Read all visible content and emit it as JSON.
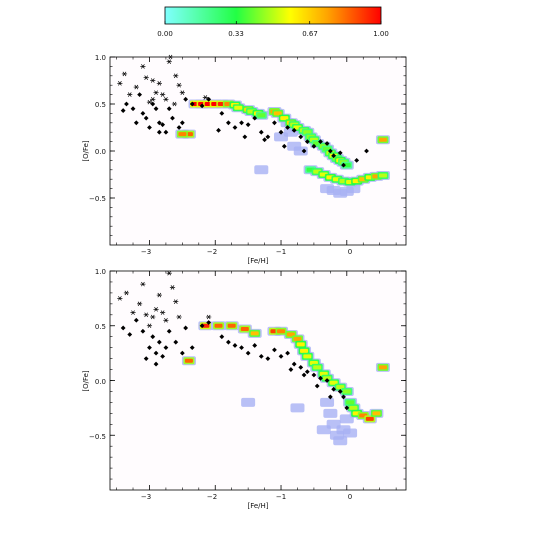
{
  "colorbar": {
    "tick_labels": [
      "0.00",
      "0.33",
      "0.67",
      "1.00"
    ],
    "stops": [
      {
        "v": 0.0,
        "color": "#80ffff"
      },
      {
        "v": 0.33,
        "color": "#22ff44"
      },
      {
        "v": 0.58,
        "color": "#ffff00"
      },
      {
        "v": 0.75,
        "color": "#ffa500"
      },
      {
        "v": 1.0,
        "color": "#ff0000"
      }
    ]
  },
  "chart_data": [
    {
      "type": "scatter",
      "xlabel": "[Fe/H]",
      "ylabel": "[O/Fe]",
      "xlim": [
        -3.6,
        0.9
      ],
      "ylim": [
        -1.0,
        1.0
      ],
      "x_ticks": [
        -3,
        -2,
        -1,
        0
      ],
      "x_tick_labels": [
        "−3",
        "−2",
        "−1",
        "0"
      ],
      "y_ticks": [
        1.0,
        0.5,
        0.0,
        -0.5
      ],
      "y_tick_labels": [
        "1.0",
        "0.5",
        "0.0",
        "−0.5"
      ],
      "density_cells": [
        [
          -2.3,
          0.5,
          1.0
        ],
        [
          -2.2,
          0.5,
          1.0
        ],
        [
          -2.1,
          0.5,
          1.0
        ],
        [
          -2.0,
          0.5,
          1.0
        ],
        [
          -1.9,
          0.5,
          0.95
        ],
        [
          -1.8,
          0.5,
          0.8
        ],
        [
          -1.7,
          0.49,
          0.6
        ],
        [
          -1.65,
          0.46,
          0.55
        ],
        [
          -1.5,
          0.44,
          0.65
        ],
        [
          -1.45,
          0.42,
          0.5
        ],
        [
          -1.35,
          0.4,
          0.6
        ],
        [
          -1.3,
          0.38,
          0.4
        ],
        [
          -1.1,
          0.42,
          0.75
        ],
        [
          -1.05,
          0.4,
          0.7
        ],
        [
          -0.95,
          0.35,
          0.6
        ],
        [
          -0.85,
          0.3,
          0.65
        ],
        [
          -0.8,
          0.28,
          0.5
        ],
        [
          -0.75,
          0.25,
          0.55
        ],
        [
          -0.65,
          0.22,
          0.5
        ],
        [
          -0.6,
          0.2,
          0.45
        ],
        [
          -0.55,
          0.15,
          0.45
        ],
        [
          -0.5,
          0.12,
          0.5
        ],
        [
          -0.45,
          0.08,
          0.4
        ],
        [
          -0.35,
          0.05,
          0.45
        ],
        [
          -0.3,
          0.02,
          0.4
        ],
        [
          -0.25,
          -0.02,
          0.5
        ],
        [
          -0.2,
          -0.05,
          0.55
        ],
        [
          -0.15,
          -0.08,
          0.45
        ],
        [
          -0.1,
          -0.1,
          0.6
        ],
        [
          -0.05,
          -0.12,
          0.45
        ],
        [
          0.0,
          -0.15,
          0.35
        ],
        [
          -0.55,
          -0.2,
          0.35
        ],
        [
          -0.45,
          -0.22,
          0.5
        ],
        [
          -0.35,
          -0.25,
          0.55
        ],
        [
          -0.25,
          -0.28,
          0.6
        ],
        [
          -0.15,
          -0.3,
          0.55
        ],
        [
          -0.05,
          -0.32,
          0.5
        ],
        [
          0.05,
          -0.33,
          0.55
        ],
        [
          0.15,
          -0.32,
          0.6
        ],
        [
          0.25,
          -0.3,
          0.7
        ],
        [
          0.35,
          -0.28,
          0.6
        ],
        [
          0.45,
          -0.27,
          0.75
        ],
        [
          0.55,
          -0.26,
          0.5
        ],
        [
          -0.3,
          -0.4,
          0.1
        ],
        [
          -0.2,
          -0.42,
          0.12
        ],
        [
          -0.1,
          -0.45,
          0.1
        ],
        [
          0.0,
          -0.43,
          0.08
        ],
        [
          0.1,
          -0.4,
          0.1
        ],
        [
          -1.0,
          0.15,
          0.1
        ],
        [
          -0.8,
          0.05,
          0.1
        ],
        [
          -0.7,
          0.0,
          0.1
        ],
        [
          -0.9,
          0.3,
          0.2
        ],
        [
          -0.85,
          0.2,
          0.15
        ],
        [
          -1.3,
          -0.2,
          0.05
        ],
        [
          -2.4,
          0.18,
          0.85
        ],
        [
          -2.5,
          0.18,
          0.8
        ],
        [
          0.55,
          0.12,
          0.75
        ]
      ],
      "filled_points": [
        [
          -3.4,
          0.43
        ],
        [
          -3.35,
          0.5
        ],
        [
          -3.25,
          0.45
        ],
        [
          -3.15,
          0.6
        ],
        [
          -3.1,
          0.4
        ],
        [
          -3.05,
          0.35
        ],
        [
          -2.95,
          0.5
        ],
        [
          -2.9,
          0.45
        ],
        [
          -2.85,
          0.3
        ],
        [
          -2.8,
          0.28
        ],
        [
          -2.75,
          0.2
        ],
        [
          -2.7,
          0.45
        ],
        [
          -2.65,
          0.35
        ],
        [
          -2.55,
          0.25
        ],
        [
          -2.5,
          0.3
        ],
        [
          -2.45,
          0.55
        ],
        [
          -2.35,
          0.5
        ],
        [
          -2.2,
          0.48
        ],
        [
          -2.1,
          0.55
        ],
        [
          -1.9,
          0.4
        ],
        [
          -1.8,
          0.3
        ],
        [
          -1.7,
          0.25
        ],
        [
          -1.6,
          0.3
        ],
        [
          -1.5,
          0.28
        ],
        [
          -1.4,
          0.35
        ],
        [
          -1.3,
          0.2
        ],
        [
          -1.2,
          0.15
        ],
        [
          -1.1,
          0.3
        ],
        [
          -1.0,
          0.2
        ],
        [
          -0.9,
          0.25
        ],
        [
          -0.8,
          0.22
        ],
        [
          -0.7,
          0.15
        ],
        [
          -0.6,
          0.1
        ],
        [
          -0.5,
          0.05
        ],
        [
          -0.4,
          0.1
        ],
        [
          -0.3,
          0.08
        ],
        [
          -0.2,
          -0.05
        ],
        [
          -0.1,
          -0.02
        ],
        [
          -3.0,
          0.25
        ],
        [
          -2.85,
          0.2
        ],
        [
          -3.2,
          0.3
        ],
        [
          -1.95,
          0.22
        ],
        [
          -1.55,
          0.15
        ],
        [
          -1.25,
          0.12
        ],
        [
          -0.95,
          0.05
        ],
        [
          -0.65,
          0.0
        ],
        [
          -0.05,
          -0.15
        ],
        [
          0.3,
          0.0
        ],
        [
          -0.25,
          0.0
        ],
        [
          0.15,
          -0.1
        ]
      ],
      "star_points": [
        [
          -3.45,
          0.72
        ],
        [
          -3.38,
          0.82
        ],
        [
          -3.3,
          0.6
        ],
        [
          -3.2,
          0.68
        ],
        [
          -3.1,
          0.9
        ],
        [
          -3.05,
          0.78
        ],
        [
          -2.95,
          0.75
        ],
        [
          -2.9,
          0.62
        ],
        [
          -2.85,
          0.72
        ],
        [
          -2.8,
          0.6
        ],
        [
          -2.75,
          0.55
        ],
        [
          -2.7,
          0.95
        ],
        [
          -2.68,
          1.0
        ],
        [
          -2.6,
          0.8
        ],
        [
          -2.55,
          0.7
        ],
        [
          -2.5,
          0.62
        ],
        [
          -2.62,
          0.5
        ],
        [
          -2.95,
          0.55
        ],
        [
          -3.0,
          0.52
        ],
        [
          -2.15,
          0.57
        ]
      ]
    },
    {
      "type": "scatter",
      "xlabel": "[Fe/H]",
      "ylabel": "[O/Fe]",
      "xlim": [
        -3.6,
        0.9
      ],
      "ylim": [
        -1.0,
        1.0
      ],
      "x_ticks": [
        -3,
        -2,
        -1,
        0
      ],
      "x_tick_labels": [
        "−3",
        "−2",
        "−1",
        "0"
      ],
      "y_ticks": [
        1.0,
        0.5,
        0.0,
        -0.5
      ],
      "y_tick_labels": [
        "1.0",
        "0.5",
        "0.0",
        "−0.5"
      ],
      "density_cells": [
        [
          -2.15,
          0.5,
          0.95
        ],
        [
          -1.95,
          0.5,
          0.85
        ],
        [
          -1.75,
          0.5,
          0.85
        ],
        [
          -1.55,
          0.47,
          0.85
        ],
        [
          -1.4,
          0.43,
          0.7
        ],
        [
          -1.1,
          0.45,
          0.9
        ],
        [
          -1.0,
          0.45,
          0.8
        ],
        [
          -0.85,
          0.42,
          0.75
        ],
        [
          -0.75,
          0.38,
          0.75
        ],
        [
          -0.7,
          0.33,
          0.6
        ],
        [
          -0.65,
          0.27,
          0.6
        ],
        [
          -0.6,
          0.22,
          0.55
        ],
        [
          -0.5,
          0.16,
          0.55
        ],
        [
          -0.45,
          0.12,
          0.5
        ],
        [
          -0.35,
          0.06,
          0.55
        ],
        [
          -0.3,
          0.02,
          0.5
        ],
        [
          -0.2,
          -0.02,
          0.55
        ],
        [
          -0.1,
          -0.06,
          0.5
        ],
        [
          0.0,
          -0.1,
          0.45
        ],
        [
          0.05,
          -0.2,
          0.4
        ],
        [
          0.1,
          -0.25,
          0.5
        ],
        [
          0.15,
          -0.3,
          0.6
        ],
        [
          0.25,
          -0.32,
          0.8
        ],
        [
          0.35,
          -0.35,
          0.9
        ],
        [
          0.45,
          -0.3,
          0.7
        ],
        [
          -0.3,
          -0.2,
          0.1
        ],
        [
          -0.25,
          -0.3,
          0.12
        ],
        [
          -0.2,
          -0.4,
          0.1
        ],
        [
          -0.15,
          -0.5,
          0.1
        ],
        [
          -0.05,
          -0.45,
          0.12
        ],
        [
          0.0,
          -0.35,
          0.1
        ],
        [
          -0.35,
          -0.45,
          0.08
        ],
        [
          -0.1,
          -0.55,
          0.1
        ],
        [
          0.05,
          -0.48,
          0.08
        ],
        [
          -1.5,
          -0.2,
          0.05
        ],
        [
          -0.75,
          -0.25,
          0.05
        ],
        [
          -2.4,
          0.18,
          0.85
        ],
        [
          0.55,
          0.12,
          0.75
        ]
      ],
      "filled_points": [
        [
          -3.4,
          0.48
        ],
        [
          -3.3,
          0.42
        ],
        [
          -3.2,
          0.55
        ],
        [
          -3.1,
          0.45
        ],
        [
          -3.0,
          0.3
        ],
        [
          -2.95,
          0.4
        ],
        [
          -2.9,
          0.25
        ],
        [
          -2.85,
          0.35
        ],
        [
          -2.8,
          0.22
        ],
        [
          -2.75,
          0.3
        ],
        [
          -2.7,
          0.45
        ],
        [
          -2.6,
          0.35
        ],
        [
          -2.5,
          0.25
        ],
        [
          -2.45,
          0.48
        ],
        [
          -2.35,
          0.3
        ],
        [
          -2.2,
          0.5
        ],
        [
          -2.1,
          0.53
        ],
        [
          -1.9,
          0.4
        ],
        [
          -1.8,
          0.35
        ],
        [
          -1.7,
          0.32
        ],
        [
          -1.6,
          0.3
        ],
        [
          -1.5,
          0.25
        ],
        [
          -1.4,
          0.32
        ],
        [
          -1.3,
          0.22
        ],
        [
          -1.2,
          0.2
        ],
        [
          -1.1,
          0.28
        ],
        [
          -1.0,
          0.22
        ],
        [
          -0.9,
          0.25
        ],
        [
          -0.8,
          0.15
        ],
        [
          -0.7,
          0.12
        ],
        [
          -0.6,
          0.08
        ],
        [
          -0.5,
          0.05
        ],
        [
          -0.4,
          0.02
        ],
        [
          -0.3,
          0.0
        ],
        [
          -0.2,
          -0.08
        ],
        [
          -0.1,
          -0.1
        ],
        [
          -0.05,
          -0.15
        ],
        [
          0.0,
          -0.25
        ],
        [
          -3.05,
          0.2
        ],
        [
          -2.9,
          0.15
        ],
        [
          -0.85,
          0.1
        ],
        [
          -0.65,
          0.05
        ],
        [
          -0.45,
          -0.05
        ],
        [
          -0.25,
          -0.15
        ]
      ],
      "star_points": [
        [
          -3.45,
          0.75
        ],
        [
          -3.35,
          0.8
        ],
        [
          -3.25,
          0.62
        ],
        [
          -3.15,
          0.7
        ],
        [
          -3.1,
          0.88
        ],
        [
          -3.05,
          0.6
        ],
        [
          -2.95,
          0.58
        ],
        [
          -2.9,
          0.65
        ],
        [
          -2.85,
          0.78
        ],
        [
          -2.8,
          0.62
        ],
        [
          -2.75,
          0.55
        ],
        [
          -2.7,
          0.98
        ],
        [
          -2.65,
          0.85
        ],
        [
          -2.6,
          0.72
        ],
        [
          -2.55,
          0.58
        ],
        [
          -3.0,
          0.5
        ],
        [
          -2.1,
          0.58
        ]
      ]
    }
  ]
}
